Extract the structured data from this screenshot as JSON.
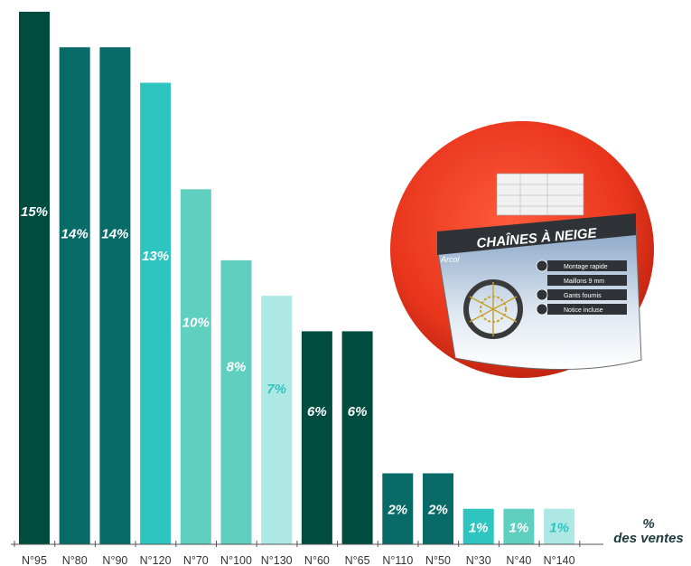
{
  "chart_data": {
    "type": "bar",
    "categories": [
      "N°95",
      "N°80",
      "N°90",
      "N°120",
      "N°70",
      "N°100",
      "N°130",
      "N°60",
      "N°65",
      "N°110",
      "N°50",
      "N°30",
      "N°40",
      "N°140"
    ],
    "values": [
      15,
      14,
      14,
      13,
      10,
      8,
      7,
      6,
      6,
      2,
      2,
      1,
      1,
      1
    ],
    "value_labels": [
      "15%",
      "14%",
      "14%",
      "13%",
      "10%",
      "8%",
      "7%",
      "6%",
      "6%",
      "2%",
      "2%",
      "1%",
      "1%",
      "1%"
    ],
    "bar_colors": [
      "#004d40",
      "#086b68",
      "#086b68",
      "#2ec4c0",
      "#5fcfc0",
      "#5fcfc0",
      "#aee8e4",
      "#004d40",
      "#004d40",
      "#086b68",
      "#086b68",
      "#2ec4c0",
      "#5fcfc0",
      "#aee8e4"
    ],
    "label_colors": [
      "#ffffff",
      "#ffffff",
      "#ffffff",
      "#ffffff",
      "#ffffff",
      "#ffffff",
      "#2ec4c0",
      "#ffffff",
      "#ffffff",
      "#ffffff",
      "#ffffff",
      "#ffffff",
      "#ffffff",
      "#2ec4c0"
    ],
    "title": "",
    "xlabel": "",
    "ylabel": "",
    "ylim": [
      0,
      15
    ],
    "grid": false,
    "unit_label": [
      "%",
      "des ventes"
    ]
  },
  "product": {
    "box_title": "CHAÎNES À NEIGE",
    "brand": "Arcol",
    "features": [
      "Montage rapide",
      "Maillons 9 mm",
      "Gants fournis",
      "Notice incluse"
    ]
  }
}
